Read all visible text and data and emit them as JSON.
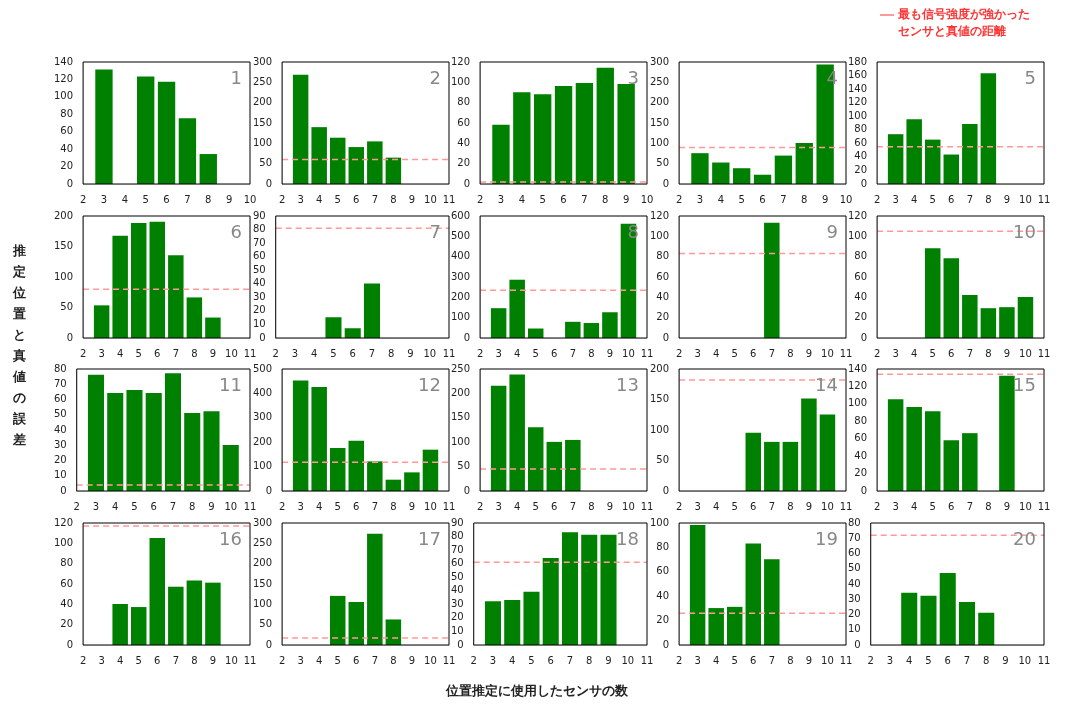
{
  "chart_data": [
    {
      "type": "bar",
      "annotations": [
        "1"
      ],
      "ylabel": "推定位置と真値の誤差",
      "x": [
        3,
        5,
        6,
        7,
        8
      ],
      "values": [
        131,
        123,
        117,
        75,
        34
      ],
      "color": "#008000",
      "xlim": [
        2,
        10
      ],
      "xticks": [
        2,
        3,
        4,
        5,
        6,
        7,
        8,
        9,
        10
      ],
      "ylim": [
        0,
        140
      ],
      "yticks": [
        0,
        20,
        40,
        60,
        80,
        100,
        120,
        140
      ],
      "grid": false,
      "legend": false
    },
    {
      "type": "bar",
      "annotations": [
        "2"
      ],
      "x": [
        3,
        4,
        5,
        6,
        7,
        8
      ],
      "values": [
        268,
        139,
        113,
        90,
        104,
        64
      ],
      "color": "#008000",
      "xlim": [
        2,
        11
      ],
      "xticks": [
        2,
        3,
        4,
        5,
        6,
        7,
        8,
        9,
        10,
        11
      ],
      "ylim": [
        0,
        300
      ],
      "yticks": [
        0,
        50,
        100,
        150,
        200,
        250,
        300
      ],
      "ref_lines": [
        {
          "axis": "y",
          "value": 60,
          "color": "#ff9999",
          "line_style": "dashed"
        }
      ],
      "grid": false,
      "legend": false
    },
    {
      "type": "bar",
      "annotations": [
        "3"
      ],
      "x": [
        3,
        4,
        5,
        6,
        7,
        8,
        9
      ],
      "values": [
        58,
        90,
        88,
        96,
        99,
        114,
        98
      ],
      "color": "#008000",
      "xlim": [
        2,
        10
      ],
      "xticks": [
        2,
        3,
        4,
        5,
        6,
        7,
        8,
        9,
        10
      ],
      "ylim": [
        0,
        120
      ],
      "yticks": [
        0,
        20,
        40,
        60,
        80,
        100,
        120
      ],
      "ref_lines": [
        {
          "axis": "y",
          "value": 2,
          "color": "#ff9999",
          "line_style": "dashed"
        }
      ],
      "grid": false,
      "legend": false
    },
    {
      "type": "bar",
      "annotations": [
        "4"
      ],
      "x": [
        3,
        4,
        5,
        6,
        7,
        8,
        9
      ],
      "values": [
        75,
        52,
        38,
        22,
        69,
        100,
        293
      ],
      "color": "#008000",
      "xlim": [
        2,
        10
      ],
      "xticks": [
        2,
        3,
        4,
        5,
        6,
        7,
        8,
        9,
        10
      ],
      "ylim": [
        0,
        300
      ],
      "yticks": [
        0,
        50,
        100,
        150,
        200,
        250,
        300
      ],
      "ref_lines": [
        {
          "axis": "y",
          "value": 90,
          "color": "#ff9999",
          "line_style": "dashed"
        }
      ],
      "grid": false,
      "legend": false
    },
    {
      "type": "bar",
      "annotations": [
        "5"
      ],
      "x": [
        3,
        4,
        5,
        6,
        7,
        8
      ],
      "values": [
        73,
        95,
        65,
        43,
        88,
        163
      ],
      "color": "#008000",
      "xlim": [
        2,
        11
      ],
      "xticks": [
        2,
        3,
        4,
        5,
        6,
        7,
        8,
        9,
        10,
        11
      ],
      "ylim": [
        0,
        180
      ],
      "yticks": [
        0,
        20,
        40,
        60,
        80,
        100,
        120,
        140,
        160,
        180
      ],
      "ref_lines": [
        {
          "axis": "y",
          "value": 55,
          "color": "#ff9999",
          "line_style": "dashed",
          "label": "最も信号強度が強かったセンサと真値の距離"
        }
      ],
      "grid": false,
      "legend": "top right"
    },
    {
      "type": "bar",
      "annotations": [
        "6"
      ],
      "x": [
        3,
        4,
        5,
        6,
        7,
        8,
        9
      ],
      "values": [
        53,
        167,
        188,
        190,
        135,
        66,
        33
      ],
      "color": "#008000",
      "xlim": [
        2,
        11
      ],
      "xticks": [
        2,
        3,
        4,
        5,
        6,
        7,
        8,
        9,
        10,
        11
      ],
      "ylim": [
        0,
        200
      ],
      "yticks": [
        0,
        50,
        100,
        150,
        200
      ],
      "ref_lines": [
        {
          "axis": "y",
          "value": 80,
          "color": "#ff9999",
          "line_style": "dashed"
        }
      ],
      "grid": false,
      "legend": false
    },
    {
      "type": "bar",
      "annotations": [
        "7"
      ],
      "x": [
        5,
        6,
        7
      ],
      "values": [
        15,
        7,
        40
      ],
      "color": "#008000",
      "xlim": [
        2,
        11
      ],
      "xticks": [
        2,
        3,
        4,
        5,
        6,
        7,
        8,
        9,
        10,
        11
      ],
      "ylim": [
        0,
        90
      ],
      "yticks": [
        0,
        10,
        20,
        30,
        40,
        50,
        60,
        70,
        80,
        90
      ],
      "ref_lines": [
        {
          "axis": "y",
          "value": 81,
          "color": "#ff9999",
          "line_style": "dashed"
        }
      ],
      "grid": false,
      "legend": false
    },
    {
      "type": "bar",
      "annotations": [
        "8"
      ],
      "x": [
        3,
        4,
        5,
        7,
        8,
        9,
        10
      ],
      "values": [
        145,
        285,
        45,
        78,
        72,
        125,
        560
      ],
      "color": "#008000",
      "xlim": [
        2,
        11
      ],
      "xticks": [
        2,
        3,
        4,
        5,
        6,
        7,
        8,
        9,
        10,
        11
      ],
      "ylim": [
        0,
        600
      ],
      "yticks": [
        0,
        100,
        200,
        300,
        400,
        500,
        600
      ],
      "ref_lines": [
        {
          "axis": "y",
          "value": 235,
          "color": "#ff9999",
          "line_style": "dashed"
        }
      ],
      "grid": false,
      "legend": false
    },
    {
      "type": "bar",
      "annotations": [
        "9"
      ],
      "x": [
        7
      ],
      "values": [
        113
      ],
      "color": "#008000",
      "xlim": [
        2,
        11
      ],
      "xticks": [
        2,
        3,
        4,
        5,
        6,
        7,
        8,
        9,
        10,
        11
      ],
      "ylim": [
        0,
        120
      ],
      "yticks": [
        0,
        20,
        40,
        60,
        80,
        100,
        120
      ],
      "ref_lines": [
        {
          "axis": "y",
          "value": 83,
          "color": "#ff9999",
          "line_style": "dashed"
        }
      ],
      "grid": false,
      "legend": false
    },
    {
      "type": "bar",
      "annotations": [
        "10"
      ],
      "x": [
        5,
        6,
        7,
        8,
        9,
        10
      ],
      "values": [
        88,
        78,
        42,
        29,
        30,
        40
      ],
      "color": "#008000",
      "xlim": [
        2,
        11
      ],
      "xticks": [
        2,
        3,
        4,
        5,
        6,
        7,
        8,
        9,
        10,
        11
      ],
      "ylim": [
        0,
        120
      ],
      "yticks": [
        0,
        20,
        40,
        60,
        80,
        100,
        120
      ],
      "ref_lines": [
        {
          "axis": "y",
          "value": 105,
          "color": "#ff9999",
          "line_style": "dashed"
        }
      ],
      "grid": false,
      "legend": false
    },
    {
      "type": "bar",
      "annotations": [
        "11"
      ],
      "x": [
        3,
        4,
        5,
        6,
        7,
        8,
        9,
        10
      ],
      "values": [
        76,
        64,
        66,
        64,
        77,
        51,
        52,
        30
      ],
      "color": "#008000",
      "xlim": [
        2,
        11
      ],
      "xticks": [
        2,
        3,
        4,
        5,
        6,
        7,
        8,
        9,
        10,
        11
      ],
      "ylim": [
        0,
        80
      ],
      "yticks": [
        0,
        10,
        20,
        30,
        40,
        50,
        60,
        70,
        80
      ],
      "ref_lines": [
        {
          "axis": "y",
          "value": 4,
          "color": "#ff9999",
          "line_style": "dashed"
        }
      ],
      "grid": false,
      "legend": false
    },
    {
      "type": "bar",
      "annotations": [
        "12"
      ],
      "x": [
        3,
        4,
        5,
        6,
        7,
        8,
        9,
        10
      ],
      "values": [
        452,
        425,
        175,
        205,
        120,
        45,
        75,
        168
      ],
      "color": "#008000",
      "xlim": [
        2,
        11
      ],
      "xticks": [
        2,
        3,
        4,
        5,
        6,
        7,
        8,
        9,
        10,
        11
      ],
      "ylim": [
        0,
        500
      ],
      "yticks": [
        0,
        100,
        200,
        300,
        400,
        500
      ],
      "ref_lines": [
        {
          "axis": "y",
          "value": 118,
          "color": "#ff9999",
          "line_style": "dashed"
        }
      ],
      "grid": false,
      "legend": false
    },
    {
      "type": "bar",
      "annotations": [
        "13"
      ],
      "x": [
        3,
        4,
        5,
        6,
        7
      ],
      "values": [
        215,
        238,
        130,
        100,
        104
      ],
      "color": "#008000",
      "xlim": [
        2,
        11
      ],
      "xticks": [
        2,
        3,
        4,
        5,
        6,
        7,
        8,
        9,
        10,
        11
      ],
      "ylim": [
        0,
        250
      ],
      "yticks": [
        0,
        50,
        100,
        150,
        200,
        250
      ],
      "ref_lines": [
        {
          "axis": "y",
          "value": 45,
          "color": "#ff9999",
          "line_style": "dashed"
        }
      ],
      "grid": false,
      "legend": false
    },
    {
      "type": "bar",
      "annotations": [
        "14"
      ],
      "x": [
        6,
        7,
        8,
        9,
        10
      ],
      "values": [
        95,
        80,
        80,
        151,
        125
      ],
      "color": "#008000",
      "xlim": [
        2,
        11
      ],
      "xticks": [
        2,
        3,
        4,
        5,
        6,
        7,
        8,
        9,
        10,
        11
      ],
      "ylim": [
        0,
        200
      ],
      "yticks": [
        0,
        50,
        100,
        150,
        200
      ],
      "ref_lines": [
        {
          "axis": "y",
          "value": 182,
          "color": "#ff9999",
          "line_style": "dashed"
        }
      ],
      "grid": false,
      "legend": false
    },
    {
      "type": "bar",
      "annotations": [
        "15"
      ],
      "x": [
        3,
        4,
        5,
        6,
        7,
        9
      ],
      "values": [
        105,
        96,
        91,
        58,
        66,
        132
      ],
      "color": "#008000",
      "xlim": [
        2,
        11
      ],
      "xticks": [
        2,
        3,
        4,
        5,
        6,
        7,
        8,
        9,
        10,
        11
      ],
      "ylim": [
        0,
        140
      ],
      "yticks": [
        0,
        20,
        40,
        60,
        80,
        100,
        120,
        140
      ],
      "ref_lines": [
        {
          "axis": "y",
          "value": 134,
          "color": "#ff9999",
          "line_style": "dashed"
        }
      ],
      "grid": false,
      "legend": false
    },
    {
      "type": "bar",
      "annotations": [
        "16"
      ],
      "x": [
        4,
        5,
        6,
        7,
        8,
        9
      ],
      "values": [
        40,
        37,
        105,
        57,
        63,
        61
      ],
      "color": "#008000",
      "xlim": [
        2,
        11
      ],
      "xticks": [
        2,
        3,
        4,
        5,
        6,
        7,
        8,
        9,
        10,
        11
      ],
      "ylim": [
        0,
        120
      ],
      "yticks": [
        0,
        20,
        40,
        60,
        80,
        100,
        120
      ],
      "ref_lines": [
        {
          "axis": "y",
          "value": 117,
          "color": "#ff9999",
          "line_style": "dashed"
        }
      ],
      "grid": false,
      "legend": false
    },
    {
      "type": "bar",
      "annotations": [
        "17"
      ],
      "x": [
        5,
        6,
        7,
        8
      ],
      "values": [
        120,
        105,
        273,
        62
      ],
      "color": "#008000",
      "xlim": [
        2,
        11
      ],
      "xticks": [
        2,
        3,
        4,
        5,
        6,
        7,
        8,
        9,
        10,
        11
      ],
      "ylim": [
        0,
        300
      ],
      "yticks": [
        0,
        50,
        100,
        150,
        200,
        250,
        300
      ],
      "ref_lines": [
        {
          "axis": "y",
          "value": 17,
          "color": "#ff9999",
          "line_style": "dashed"
        }
      ],
      "grid": false,
      "legend": false
    },
    {
      "type": "bar",
      "annotations": [
        "18"
      ],
      "xlabel": "位置推定に使用したセンサの数",
      "x": [
        3,
        4,
        5,
        6,
        7,
        8,
        9
      ],
      "values": [
        32,
        33,
        39,
        64,
        83,
        81,
        81
      ],
      "color": "#008000",
      "xlim": [
        2,
        11
      ],
      "xticks": [
        2,
        3,
        4,
        5,
        6,
        7,
        8,
        9,
        10,
        11
      ],
      "ylim": [
        0,
        90
      ],
      "yticks": [
        0,
        10,
        20,
        30,
        40,
        50,
        60,
        70,
        80,
        90
      ],
      "ref_lines": [
        {
          "axis": "y",
          "value": 61,
          "color": "#ff9999",
          "line_style": "dashed"
        }
      ],
      "grid": false,
      "legend": false
    },
    {
      "type": "bar",
      "annotations": [
        "19"
      ],
      "x": [
        3,
        4,
        5,
        6,
        7
      ],
      "values": [
        98,
        30,
        31,
        83,
        70
      ],
      "color": "#008000",
      "xlim": [
        2,
        11
      ],
      "xticks": [
        2,
        3,
        4,
        5,
        6,
        7,
        8,
        9,
        10,
        11
      ],
      "ylim": [
        0,
        100
      ],
      "yticks": [
        0,
        20,
        40,
        60,
        80,
        100
      ],
      "ref_lines": [
        {
          "axis": "y",
          "value": 26,
          "color": "#ff9999",
          "line_style": "dashed"
        }
      ],
      "grid": false,
      "legend": false
    },
    {
      "type": "bar",
      "annotations": [
        "20"
      ],
      "x": [
        4,
        5,
        6,
        7,
        8
      ],
      "values": [
        34,
        32,
        47,
        28,
        21
      ],
      "color": "#008000",
      "xlim": [
        2,
        11
      ],
      "xticks": [
        2,
        3,
        4,
        5,
        6,
        7,
        8,
        9,
        10,
        11
      ],
      "ylim": [
        0,
        80
      ],
      "yticks": [
        0,
        10,
        20,
        30,
        40,
        50,
        60,
        70,
        80
      ],
      "ref_lines": [
        {
          "axis": "y",
          "value": 72,
          "color": "#ff9999",
          "line_style": "dashed"
        }
      ],
      "grid": false,
      "legend": false
    }
  ]
}
